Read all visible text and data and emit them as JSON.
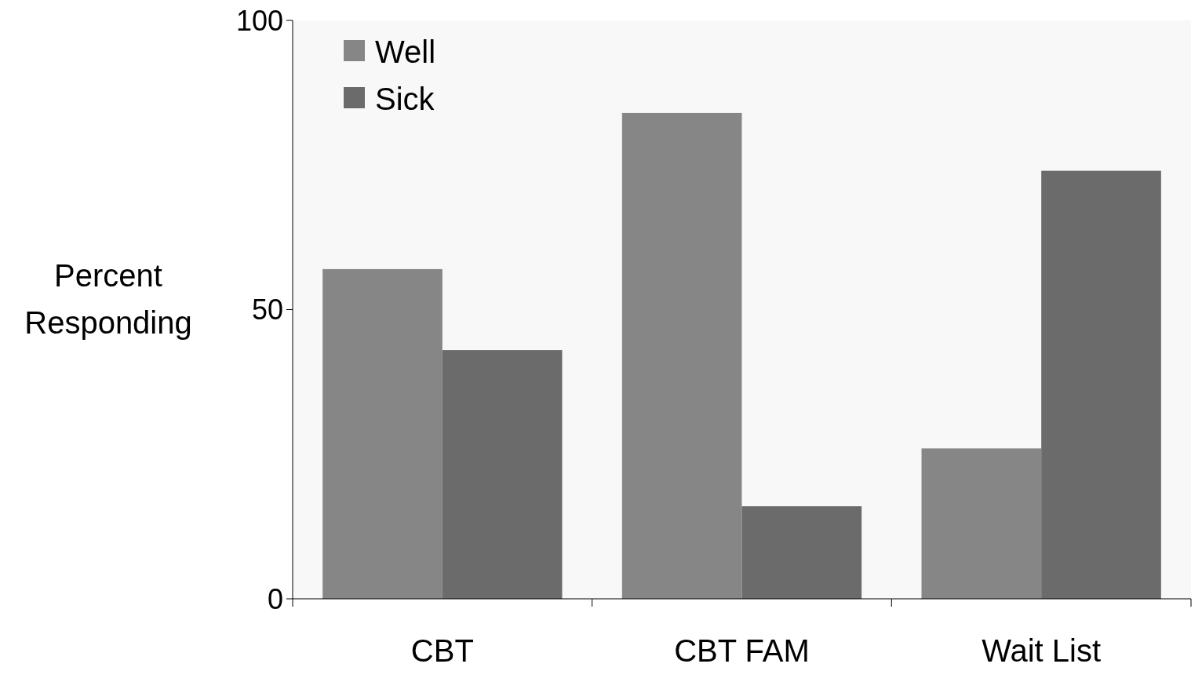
{
  "chart_data": {
    "type": "bar",
    "ylabel": "Percent Responding",
    "categories": [
      "CBT",
      "CBT FAM",
      "Wait List"
    ],
    "series": [
      {
        "name": "Well",
        "color": "#868686",
        "values": [
          57,
          84,
          26
        ]
      },
      {
        "name": "Sick",
        "color": "#6b6b6b",
        "values": [
          43,
          16,
          74
        ]
      }
    ],
    "ylim": [
      0,
      100
    ],
    "yticks": [
      0,
      50,
      100
    ],
    "grid": false,
    "legend": "top left"
  }
}
